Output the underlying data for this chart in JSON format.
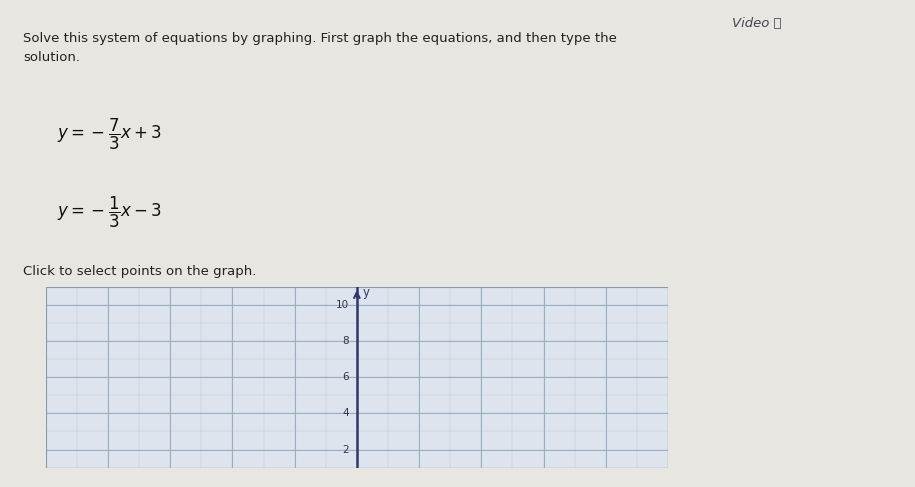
{
  "background_color": "#e8e6e0",
  "title_text": "Solve this system of equations by graphing. First graph the equations, and then type the\nsolution.",
  "eq1_display": "$y = -\\dfrac{7}{3}x + 3$",
  "eq2_display": "$y = -\\dfrac{1}{3}x - 3$",
  "click_text": "Click to select points on the graph.",
  "video_text": "Video ⓖ",
  "grid_color_minor": "#b8c8d8",
  "grid_color_major": "#9aafc4",
  "axis_color": "#2d3a6b",
  "graph_bg": "#dde4ee",
  "yticks": [
    2,
    4,
    6,
    8,
    10
  ],
  "sidebar_green": "#4a9940",
  "sidebar_blue": "#2266bb",
  "sidebar_red": "#bb3322",
  "sidebar_gray": "#c8c8c8",
  "text_color": "#222222",
  "video_color": "#444455"
}
